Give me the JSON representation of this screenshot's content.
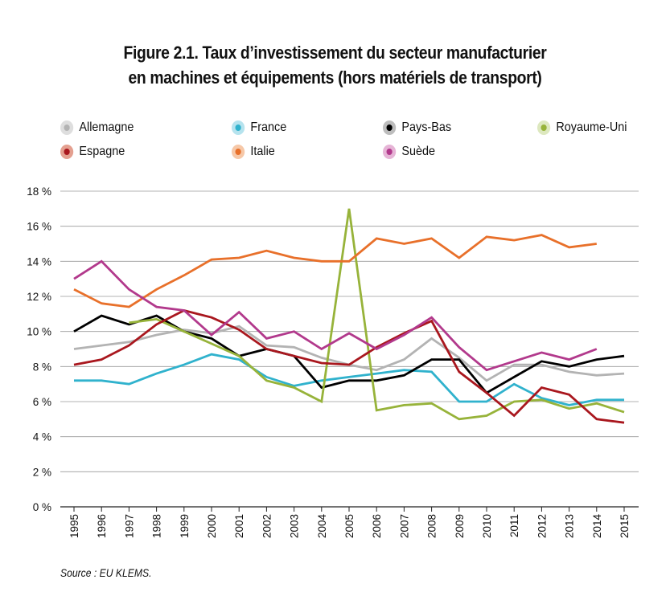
{
  "title_line1": "Figure 2.1. Taux d’investissement du secteur manufacturier",
  "title_line2": "en machines et équipements (hors matériels de transport)",
  "source": "Source : EU KLEMS.",
  "chart_data": {
    "type": "line",
    "title": "Figure 2.1. Taux d’investissement du secteur manufacturier en machines et équipements (hors matériels de transport)",
    "xlabel": "",
    "ylabel": "",
    "ylim": [
      0,
      18
    ],
    "yticks": [
      0,
      2,
      4,
      6,
      8,
      10,
      12,
      14,
      16,
      18
    ],
    "ytick_labels": [
      "0 %",
      "2 %",
      "4 %",
      "6 %",
      "8 %",
      "10 %",
      "12 %",
      "14 %",
      "16 %",
      "18 %"
    ],
    "grid": true,
    "legend_position": "top",
    "x": [
      "1995",
      "1996",
      "1997",
      "1998",
      "1999",
      "2000",
      "2001",
      "2002",
      "2003",
      "2004",
      "2005",
      "2006",
      "2007",
      "2008",
      "2009",
      "2010",
      "2011",
      "2012",
      "2013",
      "2014",
      "2015"
    ],
    "series": [
      {
        "name": "Allemagne",
        "color": "#b3b3b3",
        "values": [
          9.0,
          9.2,
          9.4,
          9.8,
          10.1,
          9.9,
          10.3,
          9.2,
          9.1,
          8.5,
          8.1,
          7.8,
          8.4,
          9.6,
          8.5,
          7.2,
          8.1,
          8.1,
          7.7,
          7.5,
          7.6
        ]
      },
      {
        "name": "France",
        "color": "#30b2cd",
        "values": [
          7.2,
          7.2,
          7.0,
          7.6,
          8.1,
          8.7,
          8.4,
          7.4,
          6.9,
          7.2,
          7.4,
          7.6,
          7.8,
          7.7,
          6.0,
          6.0,
          7.0,
          6.2,
          5.8,
          6.1,
          6.1
        ]
      },
      {
        "name": "Pays-Bas",
        "color": "#000000",
        "values": [
          10.0,
          10.9,
          10.4,
          10.9,
          10.0,
          9.6,
          8.6,
          9.0,
          8.6,
          6.8,
          7.2,
          7.2,
          7.5,
          8.4,
          8.4,
          6.5,
          7.4,
          8.3,
          8.0,
          8.4,
          8.6
        ]
      },
      {
        "name": "Royaume-Uni",
        "color": "#97b33a",
        "values": [
          null,
          null,
          10.5,
          10.7,
          10.0,
          9.3,
          8.6,
          7.2,
          6.8,
          6.0,
          17.0,
          5.5,
          5.8,
          5.9,
          5.0,
          5.2,
          6.0,
          6.1,
          5.6,
          5.9,
          5.4
        ]
      },
      {
        "name": "Espagne",
        "color": "#a9171e",
        "values": [
          8.1,
          8.4,
          9.2,
          10.4,
          11.2,
          10.8,
          10.1,
          9.0,
          8.6,
          8.2,
          8.1,
          9.1,
          9.9,
          10.6,
          7.7,
          6.5,
          5.2,
          6.8,
          6.4,
          5.0,
          4.8
        ]
      },
      {
        "name": "Italie",
        "color": "#e8702a",
        "values": [
          12.4,
          11.6,
          11.4,
          12.4,
          13.2,
          14.1,
          14.2,
          14.6,
          14.2,
          14.0,
          14.0,
          15.3,
          15.0,
          15.3,
          14.2,
          15.4,
          15.2,
          15.5,
          14.8,
          15.0,
          null
        ]
      },
      {
        "name": "Suède",
        "color": "#b2398c",
        "values": [
          13.0,
          14.0,
          12.4,
          11.4,
          11.2,
          9.8,
          11.1,
          9.6,
          10.0,
          9.0,
          9.9,
          9.0,
          9.8,
          10.8,
          9.1,
          7.8,
          8.3,
          8.8,
          8.4,
          9.0,
          null
        ]
      }
    ]
  },
  "legend": [
    {
      "label": "Allemagne",
      "color": "#b3b3b3"
    },
    {
      "label": "France",
      "color": "#30b2cd"
    },
    {
      "label": "Pays-Bas",
      "color": "#000000"
    },
    {
      "label": "Royaume-Uni",
      "color": "#97b33a"
    },
    {
      "label": "Espagne",
      "color": "#a9171e"
    },
    {
      "label": "Italie",
      "color": "#e8702a"
    },
    {
      "label": "Suède",
      "color": "#b2398c"
    }
  ]
}
